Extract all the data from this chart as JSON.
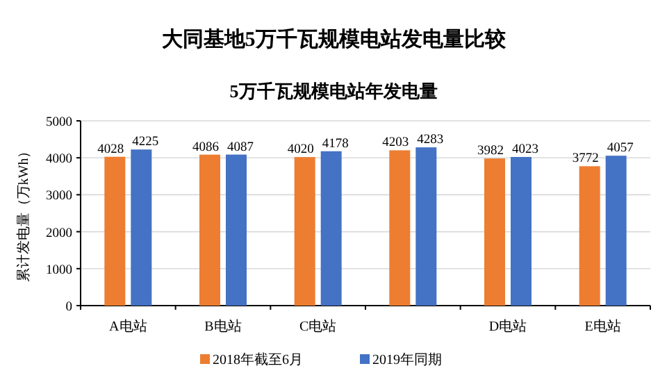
{
  "chart_data": {
    "type": "bar",
    "title": "大同基地5万千瓦规模电站发电量比较",
    "subtitle": "5万千瓦规模电站年发电量",
    "ylabel": "累计发电量（万kWh）",
    "categories": [
      "A电站",
      "B电站",
      "C电站",
      null,
      "D电站",
      "E电站"
    ],
    "series": [
      {
        "name": "2018年截至6月",
        "color": "#ed7d31",
        "values": [
          4028,
          4086,
          4020,
          4203,
          3982,
          3772
        ]
      },
      {
        "name": "2019年同期",
        "color": "#4472c4",
        "values": [
          4225,
          4087,
          4178,
          4283,
          4023,
          4057
        ]
      }
    ],
    "ylim": [
      0,
      5000
    ],
    "yticks": [
      0,
      1000,
      2000,
      3000,
      4000,
      5000
    ],
    "grid": "y",
    "legend": "bottom",
    "data_labels": true
  }
}
